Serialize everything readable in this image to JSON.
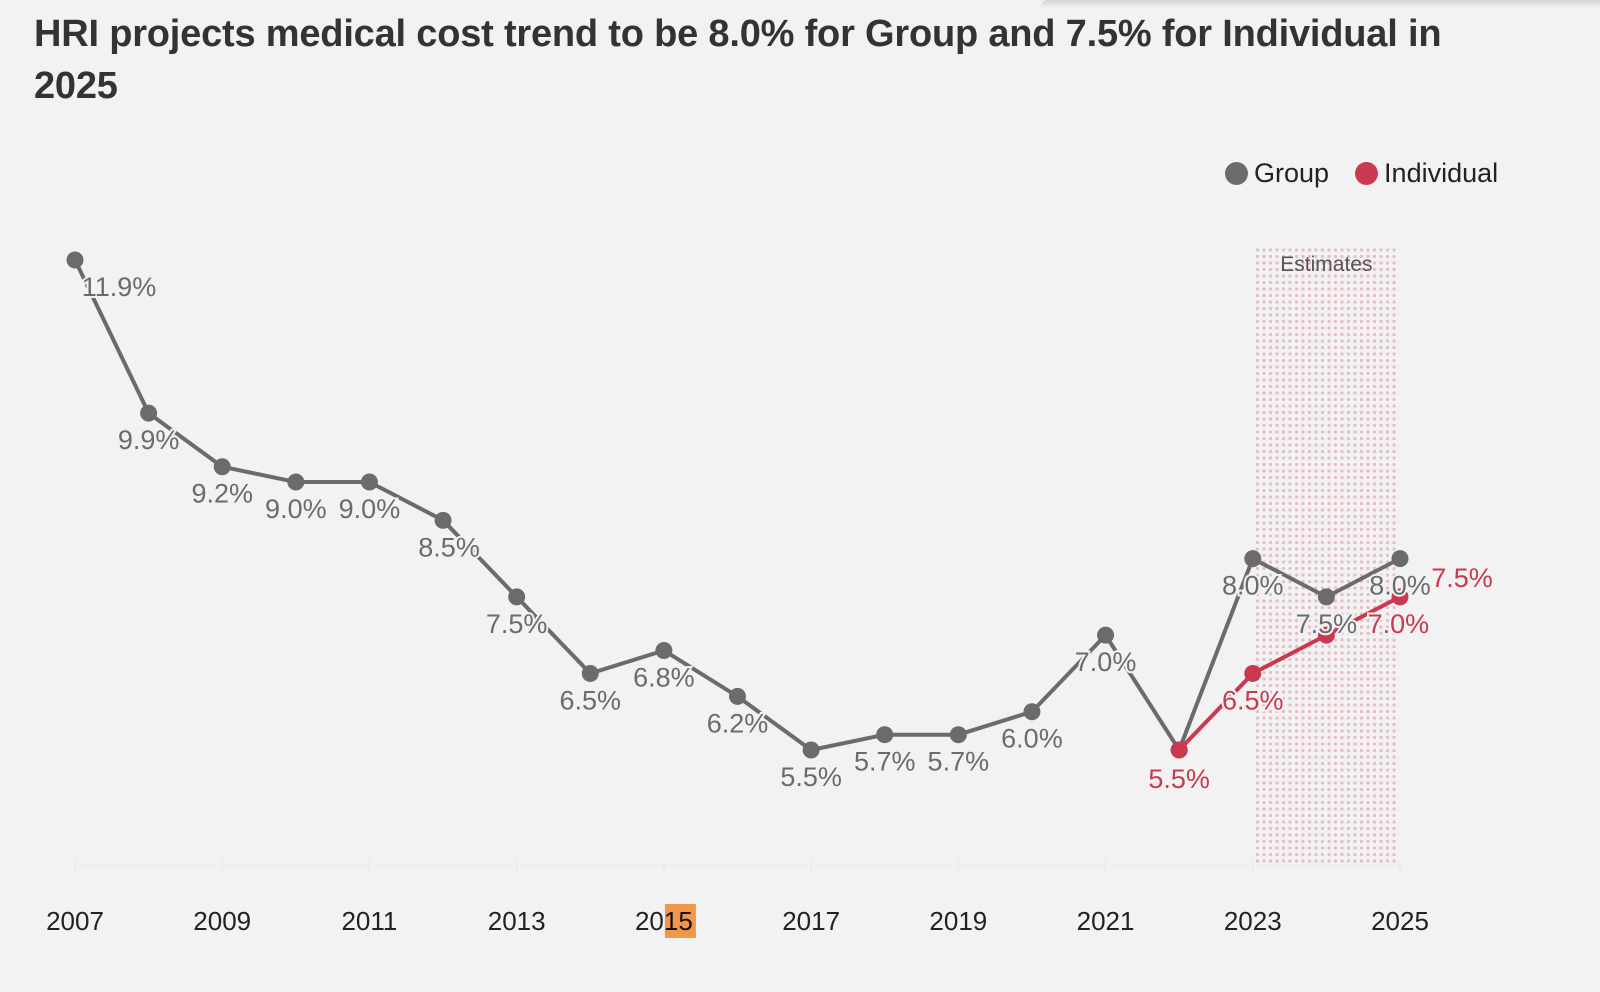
{
  "title": "HRI projects medical cost trend to be 8.0% for Group and 7.5% for Individual in 2025",
  "colors": {
    "group": "#6b6b6b",
    "individual": "#c9394f",
    "estimates_dots": "#e8bcc4",
    "background": "#f2f2f2",
    "highlight": "#f0974a"
  },
  "legend": [
    {
      "label": "Group",
      "color": "#6b6b6b"
    },
    {
      "label": "Individual",
      "color": "#c9394f"
    }
  ],
  "chart_data": {
    "type": "line",
    "title": "HRI projects medical cost trend to be 8.0% for Group and 7.5% for Individual in 2025",
    "xlabel": "",
    "ylabel": "",
    "x": [
      2007,
      2008,
      2009,
      2010,
      2011,
      2012,
      2013,
      2014,
      2015,
      2016,
      2017,
      2018,
      2019,
      2020,
      2021,
      2022,
      2023,
      2024,
      2025
    ],
    "xticks": [
      "2007",
      "2009",
      "2011",
      "2013",
      "2015",
      "2017",
      "2019",
      "2021",
      "2023",
      "2025"
    ],
    "highlighted_tick": {
      "label": "2015",
      "highlighted_part": "15"
    },
    "xlim": [
      2007,
      2025
    ],
    "ylim": [
      4.0,
      12.5
    ],
    "grid": false,
    "legend_position": "top-right",
    "series": [
      {
        "name": "Group",
        "x": [
          2007,
          2008,
          2009,
          2010,
          2011,
          2012,
          2013,
          2014,
          2015,
          2016,
          2017,
          2018,
          2019,
          2020,
          2021,
          2022,
          2023,
          2024,
          2025
        ],
        "values": [
          11.9,
          9.9,
          9.2,
          9.0,
          9.0,
          8.5,
          7.5,
          6.5,
          6.8,
          6.2,
          5.5,
          5.7,
          5.7,
          6.0,
          7.0,
          5.5,
          8.0,
          7.5,
          8.0
        ],
        "labels": [
          "11.9%",
          "9.9%",
          "9.2%",
          "9.0%",
          "9.0%",
          "8.5%",
          "7.5%",
          "6.5%",
          "6.8%",
          "6.2%",
          "5.5%",
          "5.7%",
          "5.7%",
          "6.0%",
          "7.0%",
          "",
          "8.0%",
          "7.5%",
          "8.0%"
        ]
      },
      {
        "name": "Individual",
        "x": [
          2022,
          2023,
          2024,
          2025
        ],
        "values": [
          5.5,
          6.5,
          7.0,
          7.5
        ],
        "labels": [
          "5.5%",
          "6.5%",
          "7.0%",
          "7.5%"
        ]
      }
    ],
    "annotations": [
      {
        "type": "shaded-region",
        "label": "Estimates",
        "x_range": [
          2023,
          2025
        ]
      }
    ]
  }
}
